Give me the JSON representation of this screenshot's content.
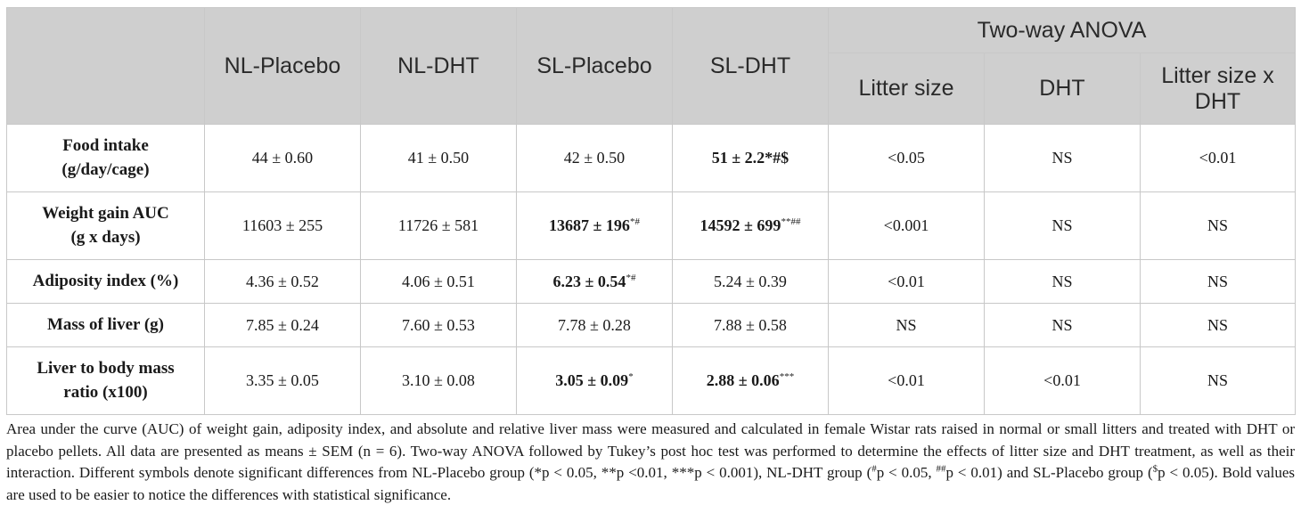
{
  "header": {
    "groups": [
      "NL-Placebo",
      "NL-DHT",
      "SL-Placebo",
      "SL-DHT"
    ],
    "anova_title": "Two-way ANOVA",
    "anova_cols": [
      "Litter size",
      "DHT",
      "Litter size x DHT"
    ]
  },
  "rows": [
    {
      "label": "Food intake (g/day/cage)",
      "cells": [
        {
          "text": "44 ± 0.60",
          "bold": false
        },
        {
          "text": "41 ± 0.50",
          "bold": false
        },
        {
          "text": "42 ± 0.50",
          "bold": false
        },
        {
          "text": "51 ± 2.2*#$",
          "bold": true
        }
      ],
      "anova": [
        "<0.05",
        "NS",
        "<0.01"
      ]
    },
    {
      "label": "Weight gain AUC (g x days)",
      "cells": [
        {
          "text": "11603 ± 255",
          "bold": false
        },
        {
          "text": "11726 ± 581",
          "bold": false
        },
        {
          "text": "13687 ± 196",
          "sup": "*#",
          "bold": true
        },
        {
          "text": "14592 ± 699",
          "sup": "**##",
          "bold": true
        }
      ],
      "anova": [
        "<0.001",
        "NS",
        "NS"
      ]
    },
    {
      "label": "Adiposity index (%)",
      "cells": [
        {
          "text": "4.36 ± 0.52",
          "bold": false
        },
        {
          "text": "4.06 ± 0.51",
          "bold": false
        },
        {
          "text": "6.23 ± 0.54",
          "sup": "*#",
          "bold": true
        },
        {
          "text": "5.24 ± 0.39",
          "bold": false
        }
      ],
      "anova": [
        "<0.01",
        "NS",
        "NS"
      ]
    },
    {
      "label": "Mass of liver (g)",
      "cells": [
        {
          "text": "7.85 ± 0.24",
          "bold": false
        },
        {
          "text": "7.60 ± 0.53",
          "bold": false
        },
        {
          "text": "7.78 ± 0.28",
          "bold": false
        },
        {
          "text": "7.88 ± 0.58",
          "bold": false
        }
      ],
      "anova": [
        "NS",
        "NS",
        "NS"
      ]
    },
    {
      "label": "Liver to body mass ratio (x100)",
      "cells": [
        {
          "text": "3.35 ± 0.05",
          "bold": false
        },
        {
          "text": "3.10 ± 0.08",
          "bold": false
        },
        {
          "text": "3.05 ± 0.09",
          "sup": "*",
          "bold": true
        },
        {
          "text": "2.88 ± 0.06",
          "sup": "***",
          "bold": true
        }
      ],
      "anova": [
        "<0.01",
        "<0.01",
        "NS"
      ]
    }
  ],
  "caption": {
    "part1": "Area under the curve (AUC) of weight gain, adiposity index, and absolute and relative liver mass were measured and calculated in female Wistar rats raised in normal or small litters and treated with DHT or placebo pellets. All data are presented as means ± SEM (n = 6). Two-way ANOVA followed by Tukey’s post hoc test was performed to determine the effects of litter size and DHT treatment, as well as their interaction. Different symbols denote significant differences from NL-Placebo group (*p < 0.05, **p <0.01, ***p < 0.001), NL-DHT group (",
    "sup1": "#",
    "part2": "p < 0.05, ",
    "sup2": "##",
    "part3": "p < 0.01) and SL-Placebo group (",
    "sup3": "$",
    "part4": "p < 0.05). Bold values are used to be easier to notice the differences with statistical significance."
  }
}
